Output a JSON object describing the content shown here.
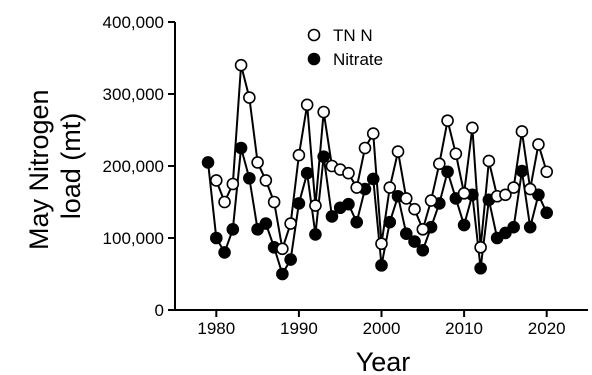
{
  "chart_data": {
    "type": "line",
    "xlabel": "Year",
    "ylabel_lines": [
      "May Nitrogen",
      "load (mt)"
    ],
    "xlim": [
      1975,
      2025
    ],
    "ylim": [
      0,
      400000
    ],
    "xticks": [
      1980,
      1990,
      2000,
      2010,
      2020
    ],
    "yticks": [
      0,
      100000,
      200000,
      300000,
      400000
    ],
    "xtick_labels": [
      "1980",
      "1990",
      "2000",
      "2010",
      "2020"
    ],
    "ytick_labels": [
      "0",
      "100,000",
      "200,000",
      "300,000",
      "400,000"
    ],
    "grid": false,
    "legend_position": "top",
    "series": [
      {
        "name": "TN N",
        "marker": "open-circle",
        "points": [
          [
            1980,
            180000
          ],
          [
            1981,
            150000
          ],
          [
            1982,
            175000
          ],
          [
            1983,
            340000
          ],
          [
            1984,
            295000
          ],
          [
            1985,
            205000
          ],
          [
            1986,
            180000
          ],
          [
            1987,
            150000
          ],
          [
            1988,
            85000
          ],
          [
            1989,
            120000
          ],
          [
            1990,
            215000
          ],
          [
            1991,
            285000
          ],
          [
            1992,
            145000
          ],
          [
            1993,
            275000
          ],
          [
            1994,
            200000
          ],
          [
            1995,
            195000
          ],
          [
            1996,
            190000
          ],
          [
            1997,
            170000
          ],
          [
            1998,
            225000
          ],
          [
            1999,
            245000
          ],
          [
            2000,
            92000
          ],
          [
            2001,
            170000
          ],
          [
            2002,
            220000
          ],
          [
            2003,
            155000
          ],
          [
            2004,
            140000
          ],
          [
            2005,
            112000
          ],
          [
            2006,
            152000
          ],
          [
            2007,
            203000
          ],
          [
            2008,
            263000
          ],
          [
            2009,
            217000
          ],
          [
            2010,
            162000
          ],
          [
            2011,
            253000
          ],
          [
            2012,
            87000
          ],
          [
            2013,
            207000
          ],
          [
            2014,
            158000
          ],
          [
            2015,
            160000
          ],
          [
            2016,
            170000
          ],
          [
            2017,
            248000
          ],
          [
            2018,
            168000
          ],
          [
            2019,
            230000
          ],
          [
            2020,
            192000
          ]
        ]
      },
      {
        "name": "Nitrate",
        "marker": "filled-circle",
        "points": [
          [
            1979,
            205000
          ],
          [
            1980,
            100000
          ],
          [
            1981,
            80000
          ],
          [
            1982,
            112000
          ],
          [
            1983,
            225000
          ],
          [
            1984,
            183000
          ],
          [
            1985,
            112000
          ],
          [
            1986,
            120000
          ],
          [
            1987,
            87000
          ],
          [
            1988,
            50000
          ],
          [
            1989,
            70000
          ],
          [
            1990,
            148000
          ],
          [
            1991,
            190000
          ],
          [
            1992,
            105000
          ],
          [
            1993,
            213000
          ],
          [
            1994,
            130000
          ],
          [
            1995,
            142000
          ],
          [
            1996,
            147000
          ],
          [
            1997,
            122000
          ],
          [
            1998,
            168000
          ],
          [
            1999,
            182000
          ],
          [
            2000,
            62000
          ],
          [
            2001,
            122000
          ],
          [
            2002,
            158000
          ],
          [
            2003,
            106000
          ],
          [
            2004,
            95000
          ],
          [
            2005,
            83000
          ],
          [
            2006,
            115000
          ],
          [
            2007,
            148000
          ],
          [
            2008,
            192000
          ],
          [
            2009,
            155000
          ],
          [
            2010,
            118000
          ],
          [
            2011,
            160000
          ],
          [
            2012,
            58000
          ],
          [
            2013,
            153000
          ],
          [
            2014,
            100000
          ],
          [
            2015,
            107000
          ],
          [
            2016,
            115000
          ],
          [
            2017,
            193000
          ],
          [
            2018,
            115000
          ],
          [
            2019,
            160000
          ],
          [
            2020,
            135000
          ]
        ]
      }
    ]
  }
}
